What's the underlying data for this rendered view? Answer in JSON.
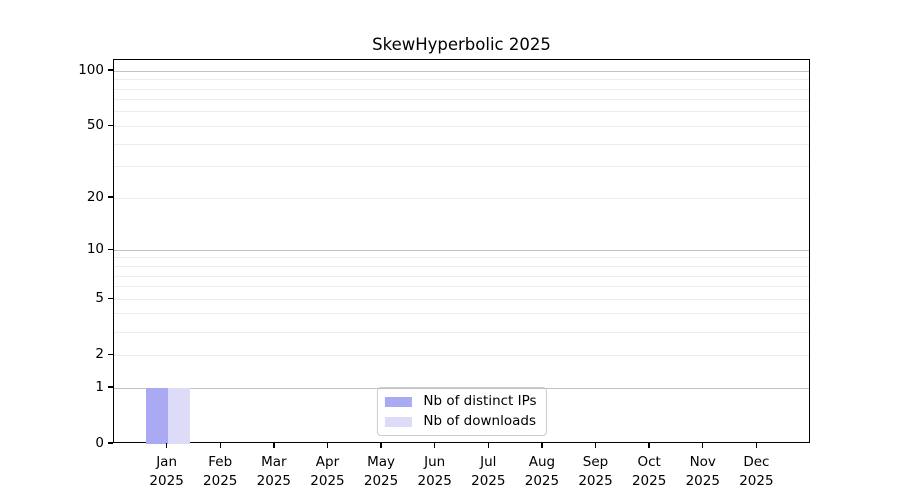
{
  "chart_data": {
    "type": "bar",
    "title": "SkewHyperbolic 2025",
    "categories": [
      "Jan",
      "Feb",
      "Mar",
      "Apr",
      "May",
      "Jun",
      "Jul",
      "Aug",
      "Sep",
      "Oct",
      "Nov",
      "Dec"
    ],
    "tick_year": "2025",
    "series": [
      {
        "key": "distinct-ips",
        "name": "Nb of distinct IPs",
        "color": "#a9a9f4",
        "values": [
          1,
          0,
          0,
          0,
          0,
          0,
          0,
          0,
          0,
          0,
          0,
          0
        ]
      },
      {
        "key": "downloads",
        "name": "Nb of downloads",
        "color": "#dcdcf8",
        "values": [
          1,
          0,
          0,
          0,
          0,
          0,
          0,
          0,
          0,
          0,
          0,
          0
        ]
      }
    ],
    "xlabel": "",
    "ylabel": "",
    "yscale": "log1p",
    "ylim": [
      0,
      115
    ],
    "yticks": [
      0,
      1,
      2,
      5,
      10,
      20,
      50,
      100
    ],
    "minor_gridlines": [
      2,
      3,
      4,
      5,
      6,
      7,
      8,
      9,
      20,
      30,
      40,
      50,
      60,
      70,
      80,
      90
    ],
    "major_gridlines": [
      1,
      10,
      100
    ],
    "grid": true,
    "legend_position": "lower center",
    "colors": {
      "minor_grid": "#ececec",
      "major_grid": "#c2c2c2",
      "axis": "#000000",
      "legend_border": "#cccccc",
      "text": "#000000"
    }
  }
}
